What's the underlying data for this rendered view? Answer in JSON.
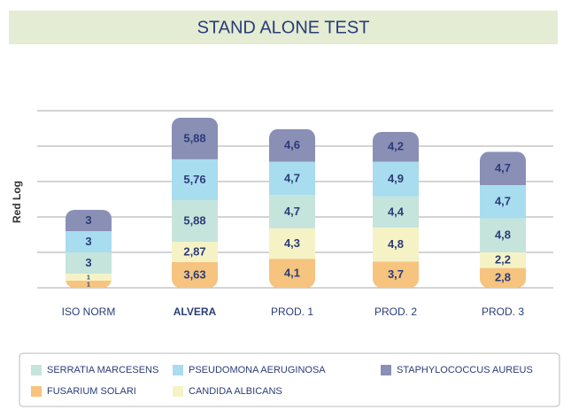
{
  "chart_data": {
    "type": "stacked_bar",
    "title": "STAND ALONE TEST",
    "y_label": "Red Log",
    "categories": [
      "ISO NORM",
      "ALVERA",
      "PROD. 1",
      "PROD. 2",
      "PROD. 3"
    ],
    "series": [
      {
        "name": "FUSARIUM SOLARI",
        "color": "#f6c47f",
        "values": [
          1,
          3.63,
          4.1,
          3.7,
          2.8
        ],
        "value_labels": [
          "1",
          "3,63",
          "4,1",
          "3,7",
          "2,8"
        ]
      },
      {
        "name": "CANDIDA ALBICANS",
        "color": "#f5f3c6",
        "values": [
          1,
          2.87,
          4.3,
          4.8,
          2.2
        ],
        "value_labels": [
          "1",
          "2,87",
          "4,3",
          "4,8",
          "2,2"
        ]
      },
      {
        "name": "SERRATIA MARCESENS",
        "color": "#c5e4dc",
        "values": [
          3,
          5.88,
          4.7,
          4.4,
          4.8
        ],
        "value_labels": [
          "3",
          "5,88",
          "4,7",
          "4,4",
          "4,8"
        ]
      },
      {
        "name": "PSEUDOMONA AERUGINOSA",
        "color": "#a8dcef",
        "values": [
          3,
          5.76,
          4.7,
          4.9,
          4.7
        ],
        "value_labels": [
          "3",
          "5,76",
          "4,7",
          "4,9",
          "4,7"
        ]
      },
      {
        "name": "STAPHYLOCOCCUS AUREUS",
        "color": "#8a8fb6",
        "values": [
          3,
          5.88,
          4.6,
          4.2,
          4.7
        ],
        "value_labels": [
          "3",
          "5,88",
          "4,6",
          "4,2",
          "4,7"
        ]
      }
    ],
    "ylim": [
      0,
      25
    ],
    "yticks": [
      0,
      5,
      10,
      15,
      20,
      25
    ],
    "grid": true
  }
}
